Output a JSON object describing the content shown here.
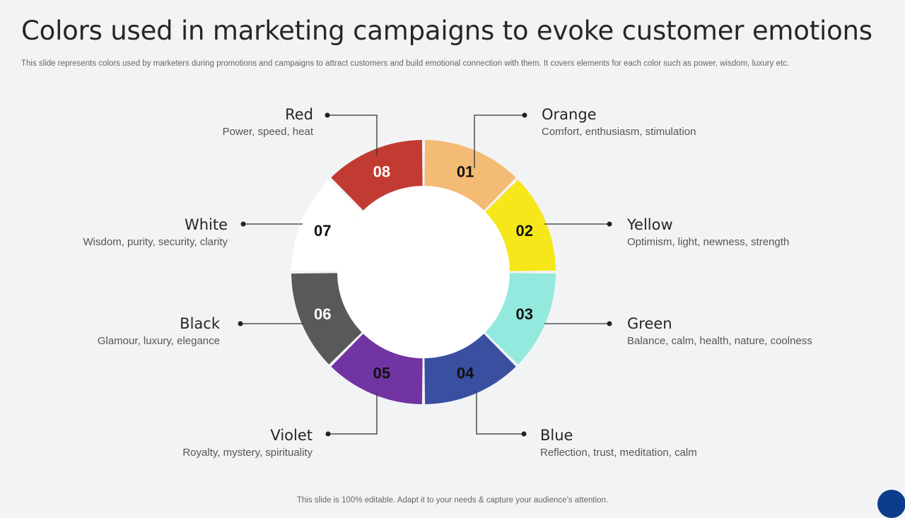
{
  "slide": {
    "title": "Colors used in marketing campaigns to evoke customer emotions",
    "subtitle": "This slide represents colors used by marketers during promotions and campaigns to attract customers and build emotional connection with them. It covers elements for each color such as power, wisdom, luxury etc.",
    "footer": "This slide is 100% editable. Adapt it to your needs & capture your audience’s attention."
  },
  "segments": [
    {
      "number": "01",
      "name": "Orange",
      "desc": "Comfort, enthusiasm, stimulation",
      "color": "#f4bb74",
      "number_color": "#111111"
    },
    {
      "number": "02",
      "name": "Yellow",
      "desc": "Optimism, light, newness, strength",
      "color": "#f5e71a",
      "number_color": "#111111"
    },
    {
      "number": "03",
      "name": "Green",
      "desc": "Balance, calm, health, nature, coolness",
      "color": "#93e9dd",
      "number_color": "#111111"
    },
    {
      "number": "04",
      "name": "Blue",
      "desc": "Reflection, trust, meditation, calm",
      "color": "#3a4fa0",
      "number_color": "#111111"
    },
    {
      "number": "05",
      "name": "Violet",
      "desc": "Royalty, mystery, spirituality",
      "color": "#7234a2",
      "number_color": "#111111"
    },
    {
      "number": "06",
      "name": "Black",
      "desc": "Glamour, luxury, elegance",
      "color": "#595959",
      "number_color": "#ffffff"
    },
    {
      "number": "07",
      "name": "White",
      "desc": "Wisdom, purity, security, clarity",
      "color": "#ffffff",
      "number_color": "#111111"
    },
    {
      "number": "08",
      "name": "Red",
      "desc": "Power, speed, heat",
      "color": "#c23b32",
      "number_color": "#ffffff"
    }
  ]
}
